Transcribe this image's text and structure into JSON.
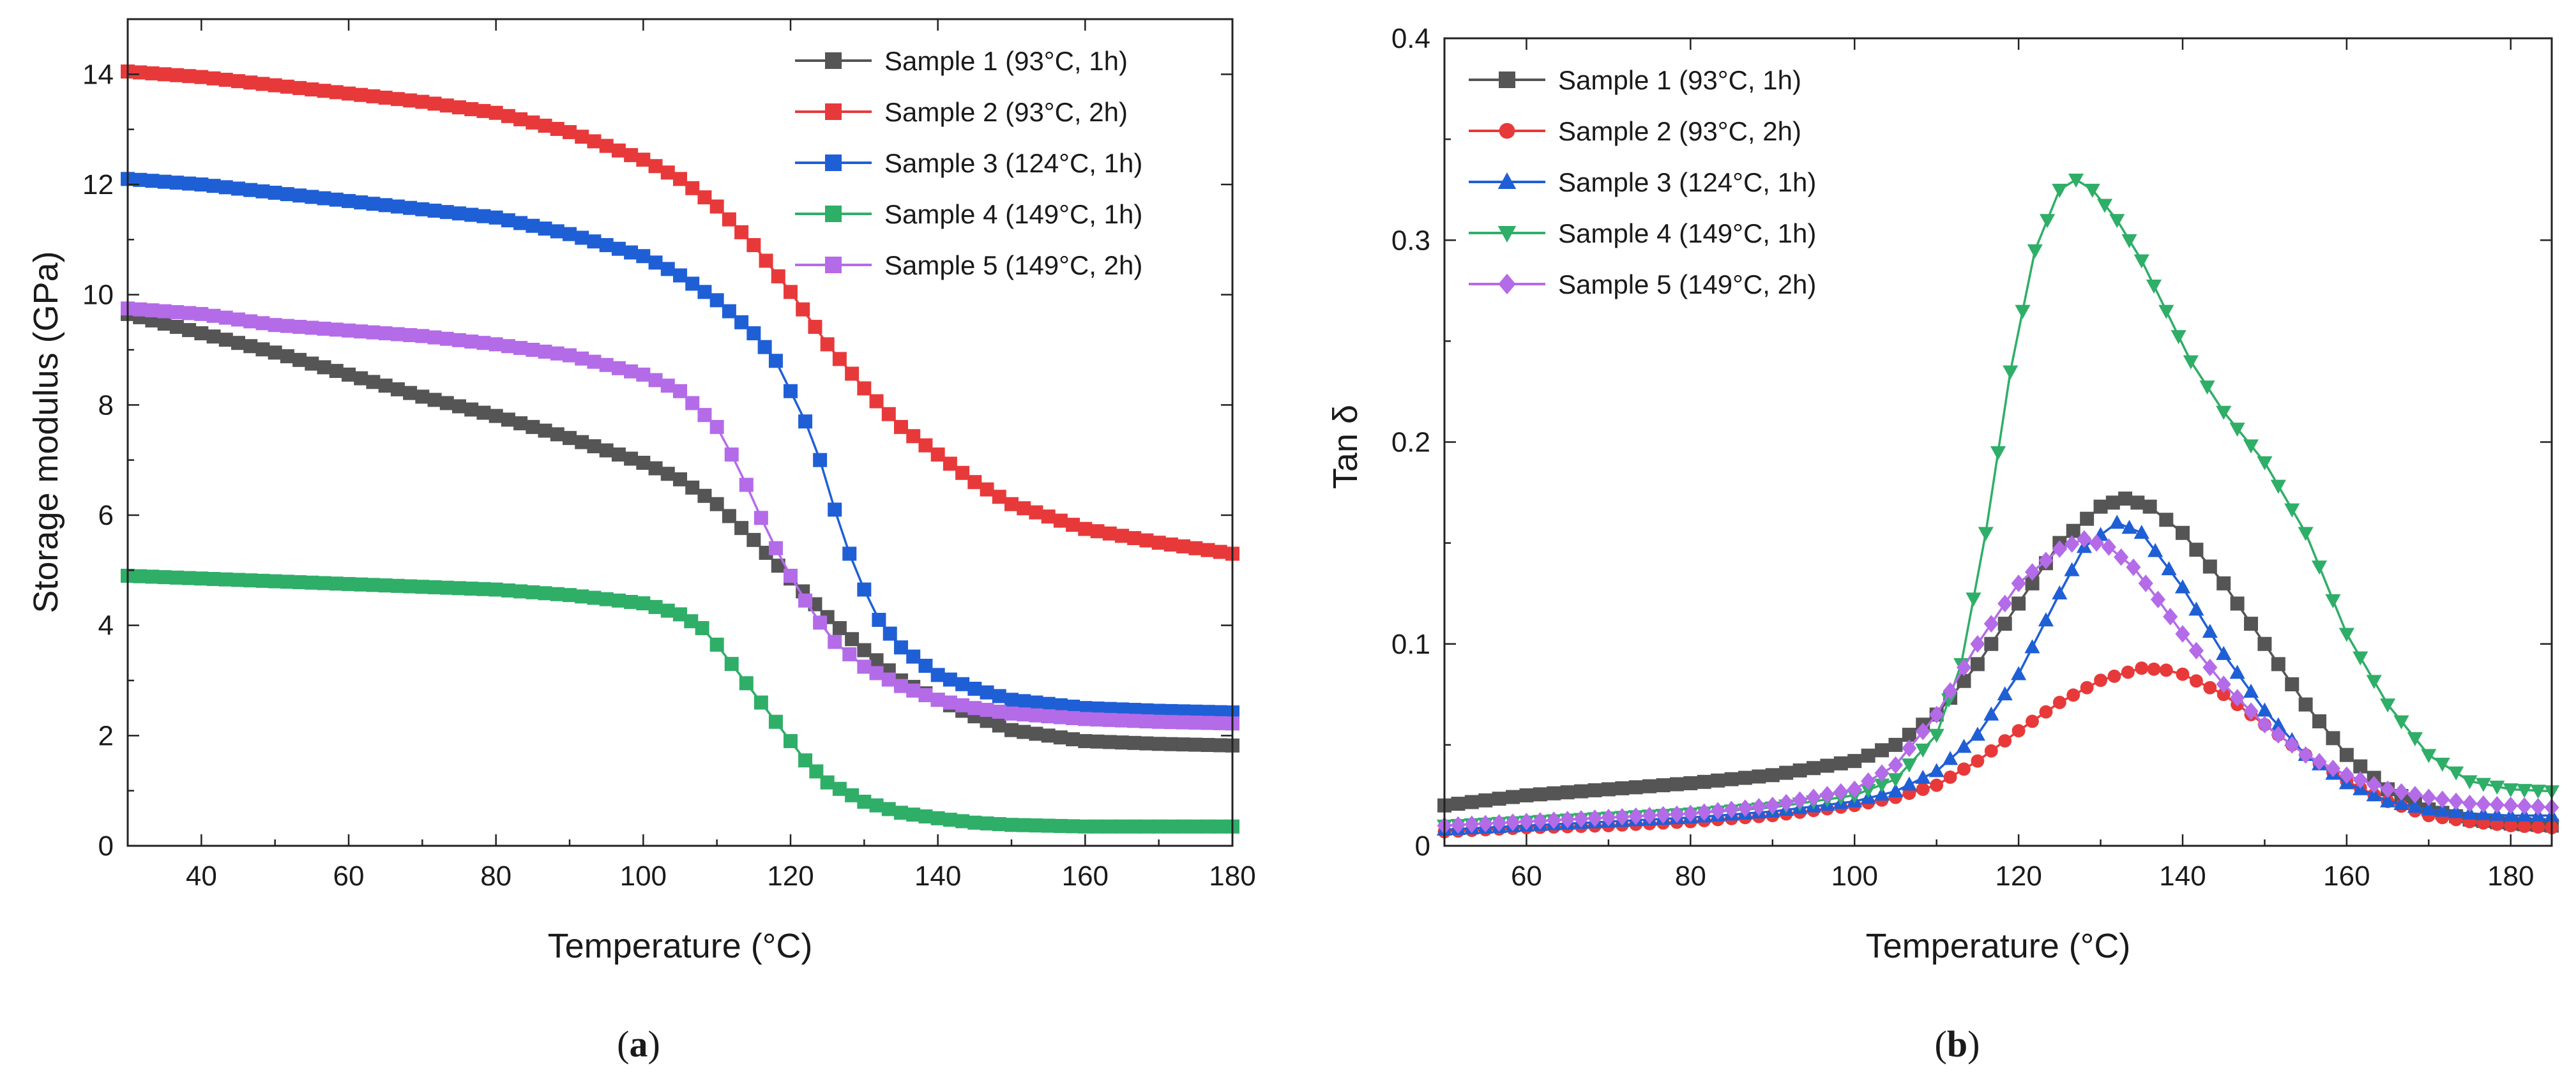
{
  "captions": {
    "a": "a",
    "b": "b"
  },
  "chart_data": [
    {
      "id": "a",
      "type": "line",
      "title": "",
      "xlabel": "Temperature (°C)",
      "ylabel": "Storage modulus (GPa)",
      "xlim": [
        30,
        180
      ],
      "ylim": [
        0,
        15
      ],
      "xticks": [
        40,
        60,
        80,
        100,
        120,
        140,
        160,
        180
      ],
      "yticks": [
        0,
        2,
        4,
        6,
        8,
        10,
        12,
        14
      ],
      "legend_position": "top-right",
      "series": [
        {
          "name": "Sample 1 (93°C, 1h)",
          "color": "#555555",
          "marker": "square",
          "x": [
            30,
            40,
            50,
            60,
            70,
            80,
            90,
            100,
            105,
            110,
            115,
            120,
            125,
            130,
            135,
            140,
            145,
            150,
            160,
            170,
            180
          ],
          "y": [
            9.65,
            9.3,
            8.95,
            8.55,
            8.15,
            7.8,
            7.4,
            6.95,
            6.65,
            6.2,
            5.55,
            4.85,
            4.15,
            3.55,
            3.0,
            2.65,
            2.35,
            2.1,
            1.9,
            1.85,
            1.82
          ]
        },
        {
          "name": "Sample 2 (93°C, 2h)",
          "color": "#e8393a",
          "marker": "square",
          "x": [
            30,
            40,
            50,
            60,
            70,
            80,
            90,
            100,
            105,
            110,
            115,
            120,
            125,
            130,
            135,
            140,
            145,
            150,
            160,
            170,
            180
          ],
          "y": [
            14.05,
            13.95,
            13.8,
            13.65,
            13.5,
            13.3,
            12.95,
            12.45,
            12.1,
            11.6,
            10.9,
            10.05,
            9.1,
            8.3,
            7.6,
            7.1,
            6.6,
            6.2,
            5.75,
            5.5,
            5.3
          ]
        },
        {
          "name": "Sample 3 (124°C, 1h)",
          "color": "#1f5fd6",
          "marker": "square",
          "x": [
            30,
            40,
            50,
            60,
            70,
            80,
            90,
            100,
            105,
            110,
            115,
            118,
            120,
            122,
            124,
            126,
            128,
            130,
            132,
            135,
            140,
            145,
            150,
            160,
            170,
            180
          ],
          "y": [
            12.1,
            12.0,
            11.85,
            11.7,
            11.55,
            11.4,
            11.1,
            10.7,
            10.35,
            9.9,
            9.3,
            8.8,
            8.25,
            7.7,
            7.0,
            6.1,
            5.3,
            4.65,
            4.1,
            3.6,
            3.1,
            2.85,
            2.65,
            2.5,
            2.45,
            2.42
          ]
        },
        {
          "name": "Sample 4 (149°C, 1h)",
          "color": "#2fae68",
          "marker": "square",
          "x": [
            30,
            40,
            50,
            60,
            70,
            80,
            90,
            100,
            105,
            108,
            110,
            112,
            114,
            116,
            118,
            120,
            122,
            125,
            130,
            135,
            140,
            145,
            150,
            160,
            170,
            180
          ],
          "y": [
            4.9,
            4.85,
            4.8,
            4.75,
            4.7,
            4.65,
            4.55,
            4.4,
            4.2,
            3.95,
            3.65,
            3.3,
            2.95,
            2.6,
            2.25,
            1.9,
            1.55,
            1.15,
            0.8,
            0.6,
            0.5,
            0.42,
            0.38,
            0.35,
            0.35,
            0.35
          ]
        },
        {
          "name": "Sample 5 (149°C, 2h)",
          "color": "#b46be8",
          "marker": "square",
          "x": [
            30,
            40,
            50,
            60,
            70,
            80,
            90,
            100,
            105,
            110,
            112,
            114,
            116,
            118,
            120,
            122,
            124,
            126,
            130,
            135,
            140,
            145,
            150,
            160,
            170,
            180
          ],
          "y": [
            9.75,
            9.65,
            9.45,
            9.35,
            9.25,
            9.1,
            8.9,
            8.55,
            8.25,
            7.6,
            7.1,
            6.55,
            5.95,
            5.4,
            4.9,
            4.45,
            4.05,
            3.7,
            3.25,
            2.9,
            2.65,
            2.5,
            2.4,
            2.3,
            2.25,
            2.22
          ]
        }
      ]
    },
    {
      "id": "b",
      "type": "line",
      "title": "",
      "xlabel": "Temperature (°C)",
      "ylabel": "Tan δ",
      "xlim": [
        50,
        185
      ],
      "ylim": [
        0,
        0.4
      ],
      "xticks": [
        60,
        80,
        100,
        120,
        140,
        160,
        180
      ],
      "yticks": [
        0,
        0.1,
        0.2,
        0.3,
        0.4
      ],
      "legend_position": "top-left",
      "series": [
        {
          "name": "Sample 1 (93°C, 1h)",
          "color": "#555555",
          "marker": "square",
          "x": [
            50,
            60,
            70,
            80,
            90,
            100,
            105,
            110,
            115,
            120,
            125,
            130,
            133,
            136,
            140,
            145,
            150,
            155,
            160,
            165,
            170,
            175,
            180,
            185
          ],
          "y": [
            0.02,
            0.025,
            0.028,
            0.031,
            0.035,
            0.042,
            0.05,
            0.065,
            0.09,
            0.12,
            0.15,
            0.168,
            0.172,
            0.168,
            0.155,
            0.13,
            0.1,
            0.07,
            0.045,
            0.028,
            0.018,
            0.013,
            0.011,
            0.01
          ]
        },
        {
          "name": "Sample 2 (93°C, 2h)",
          "color": "#e8393a",
          "marker": "circle",
          "x": [
            50,
            60,
            70,
            80,
            90,
            100,
            105,
            110,
            115,
            120,
            125,
            130,
            135,
            138,
            140,
            145,
            150,
            155,
            160,
            165,
            170,
            175,
            180,
            185
          ],
          "y": [
            0.007,
            0.009,
            0.01,
            0.012,
            0.015,
            0.02,
            0.024,
            0.03,
            0.042,
            0.057,
            0.071,
            0.082,
            0.088,
            0.087,
            0.085,
            0.075,
            0.06,
            0.045,
            0.032,
            0.022,
            0.015,
            0.012,
            0.01,
            0.009
          ]
        },
        {
          "name": "Sample 3 (124°C, 1h)",
          "color": "#1f5fd6",
          "marker": "triangle-up",
          "x": [
            50,
            60,
            70,
            80,
            90,
            100,
            105,
            110,
            115,
            120,
            125,
            128,
            132,
            135,
            140,
            145,
            150,
            155,
            160,
            165,
            170,
            175,
            180,
            185
          ],
          "y": [
            0.008,
            0.01,
            0.012,
            0.014,
            0.017,
            0.022,
            0.027,
            0.037,
            0.055,
            0.085,
            0.125,
            0.148,
            0.16,
            0.155,
            0.128,
            0.095,
            0.067,
            0.045,
            0.031,
            0.022,
            0.018,
            0.016,
            0.015,
            0.015
          ]
        },
        {
          "name": "Sample 4 (149°C, 1h)",
          "color": "#2fae68",
          "marker": "triangle-down",
          "x": [
            50,
            60,
            70,
            80,
            90,
            100,
            105,
            110,
            113,
            116,
            119,
            122,
            125,
            127,
            129,
            132,
            135,
            138,
            141,
            145,
            150,
            155,
            160,
            165,
            170,
            175,
            180,
            185
          ],
          "y": [
            0.01,
            0.012,
            0.014,
            0.016,
            0.019,
            0.025,
            0.033,
            0.055,
            0.09,
            0.155,
            0.235,
            0.295,
            0.325,
            0.33,
            0.325,
            0.31,
            0.29,
            0.265,
            0.24,
            0.215,
            0.19,
            0.155,
            0.105,
            0.07,
            0.045,
            0.032,
            0.028,
            0.027
          ]
        },
        {
          "name": "Sample 5 (149°C, 2h)",
          "color": "#b46be8",
          "marker": "diamond",
          "x": [
            50,
            60,
            70,
            80,
            90,
            100,
            105,
            110,
            115,
            120,
            125,
            128,
            131,
            134,
            137,
            140,
            145,
            150,
            155,
            160,
            165,
            170,
            175,
            180,
            185
          ],
          "y": [
            0.01,
            0.012,
            0.014,
            0.016,
            0.02,
            0.028,
            0.04,
            0.065,
            0.1,
            0.13,
            0.147,
            0.152,
            0.148,
            0.138,
            0.122,
            0.105,
            0.08,
            0.06,
            0.045,
            0.035,
            0.028,
            0.024,
            0.021,
            0.02,
            0.019
          ]
        }
      ]
    }
  ]
}
